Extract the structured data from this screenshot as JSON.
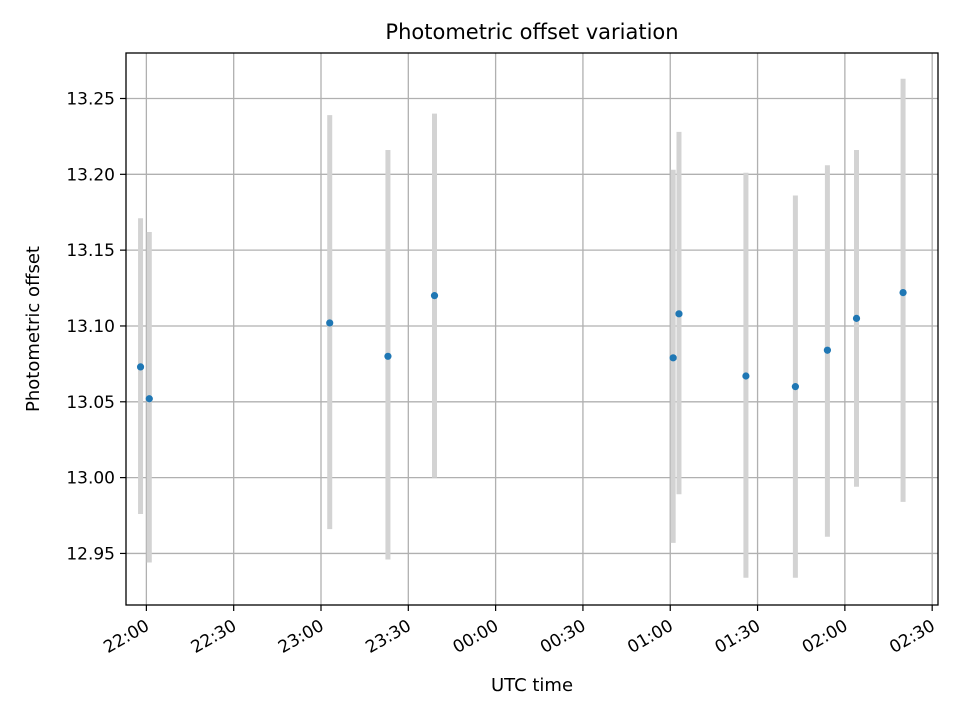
{
  "chart_data": {
    "type": "scatter",
    "title": "Photometric offset variation",
    "xlabel": "UTC time",
    "ylabel": "Photometric offset",
    "x_ticks": [
      "22:00",
      "22:30",
      "23:00",
      "23:30",
      "00:00",
      "00:30",
      "01:00",
      "01:30",
      "02:00",
      "02:30"
    ],
    "y_ticks": [
      "12.95",
      "13.00",
      "13.05",
      "13.10",
      "13.15",
      "13.20",
      "13.25"
    ],
    "xlim": [
      "21:53",
      "02:32"
    ],
    "ylim": [
      12.916,
      13.28
    ],
    "grid": true,
    "marker_color": "#1f77b4",
    "errorbar_color": "#d3d3d3",
    "points": [
      {
        "x": "21:58",
        "y": 13.073,
        "yerr_low": 12.976,
        "yerr_high": 13.171
      },
      {
        "x": "22:01",
        "y": 13.052,
        "yerr_low": 12.944,
        "yerr_high": 13.162
      },
      {
        "x": "23:03",
        "y": 13.102,
        "yerr_low": 12.966,
        "yerr_high": 13.239
      },
      {
        "x": "23:23",
        "y": 13.08,
        "yerr_low": 12.946,
        "yerr_high": 13.216
      },
      {
        "x": "23:39",
        "y": 13.12,
        "yerr_low": 13.0,
        "yerr_high": 13.24
      },
      {
        "x": "01:01",
        "y": 13.079,
        "yerr_low": 12.957,
        "yerr_high": 13.203
      },
      {
        "x": "01:03",
        "y": 13.108,
        "yerr_low": 12.989,
        "yerr_high": 13.228
      },
      {
        "x": "01:26",
        "y": 13.067,
        "yerr_low": 12.934,
        "yerr_high": 13.201
      },
      {
        "x": "01:43",
        "y": 13.06,
        "yerr_low": 12.934,
        "yerr_high": 13.186
      },
      {
        "x": "01:54",
        "y": 13.084,
        "yerr_low": 12.961,
        "yerr_high": 13.206
      },
      {
        "x": "02:04",
        "y": 13.105,
        "yerr_low": 12.994,
        "yerr_high": 13.216
      },
      {
        "x": "02:20",
        "y": 13.122,
        "yerr_low": 12.984,
        "yerr_high": 13.263
      }
    ]
  }
}
